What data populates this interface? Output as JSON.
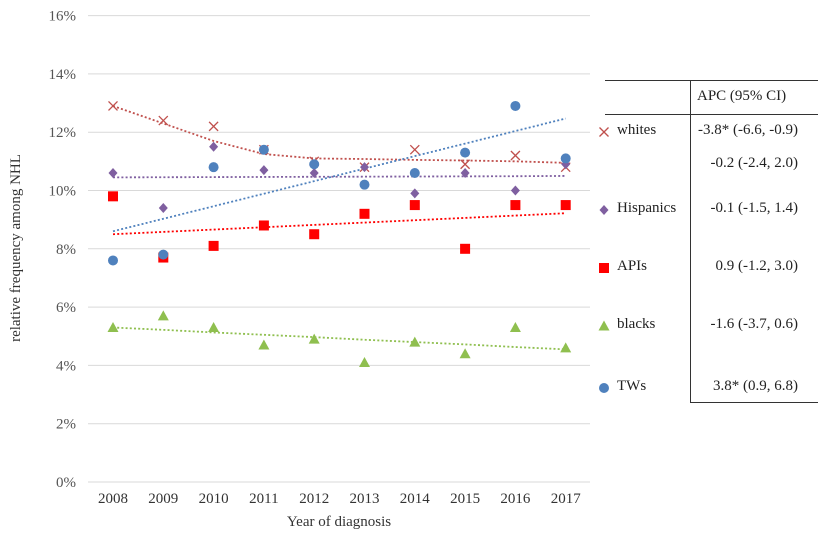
{
  "chart_data": {
    "type": "scatter",
    "title": "",
    "xlabel": "Year of diagnosis",
    "ylabel": "relative frequency among NHL",
    "categories": [
      "2008",
      "2009",
      "2010",
      "2011",
      "2012",
      "2013",
      "2014",
      "2015",
      "2016",
      "2017"
    ],
    "y_ticks": [
      "0%",
      "2%",
      "4%",
      "6%",
      "8%",
      "10%",
      "12%",
      "14%",
      "16%"
    ],
    "ylim": [
      0,
      16
    ],
    "grid": "horizontal",
    "series": [
      {
        "name": "whites",
        "marker": "x",
        "color": "#c0504d",
        "values": [
          12.9,
          12.4,
          12.2,
          11.4,
          11.0,
          10.8,
          11.4,
          10.9,
          11.2,
          10.8
        ],
        "trend": [
          12.9,
          12.3,
          11.7,
          11.25,
          11.1,
          11.08,
          11.05,
          11.03,
          11.0,
          10.95
        ],
        "apc": "-3.8* (-6.6, -0.9)"
      },
      {
        "name": "",
        "marker": "",
        "color": "",
        "values": [],
        "trend": [],
        "apc": "-0.2 (-2.4, 2.0)"
      },
      {
        "name": "Hispanics",
        "marker": "diamond",
        "color": "#7f5fa0",
        "values": [
          10.6,
          9.4,
          11.5,
          10.7,
          10.6,
          10.8,
          9.9,
          10.6,
          10.0,
          10.9
        ],
        "trend": [
          10.45,
          10.455,
          10.46,
          10.465,
          10.47,
          10.475,
          10.48,
          10.485,
          10.49,
          10.5
        ],
        "apc": "-0.1 (-1.5, 1.4)"
      },
      {
        "name": "APIs",
        "marker": "square",
        "color": "#ff0000",
        "values": [
          9.8,
          7.7,
          8.1,
          8.8,
          8.5,
          9.2,
          9.5,
          8.0,
          9.5,
          9.5
        ],
        "trend": [
          8.5,
          8.58,
          8.66,
          8.74,
          8.82,
          8.9,
          8.98,
          9.06,
          9.14,
          9.22
        ],
        "apc": "0.9 (-1.2, 3.0)"
      },
      {
        "name": "blacks",
        "marker": "triangle",
        "color": "#8fbf4f",
        "values": [
          5.3,
          5.7,
          5.3,
          4.7,
          4.9,
          4.1,
          4.8,
          4.4,
          5.3,
          4.6
        ],
        "trend": [
          5.3,
          5.22,
          5.13,
          5.05,
          4.97,
          4.88,
          4.8,
          4.72,
          4.63,
          4.55
        ],
        "apc": "-1.6 (-3.7, 0.6)"
      },
      {
        "name": "TWs",
        "marker": "circle",
        "color": "#4f81bd",
        "values": [
          7.6,
          7.8,
          10.8,
          11.4,
          10.9,
          10.2,
          10.6,
          11.3,
          12.9,
          11.1
        ],
        "trend": [
          8.6,
          9.03,
          9.46,
          9.89,
          10.32,
          10.75,
          11.18,
          11.61,
          12.04,
          12.47
        ],
        "apc": "3.8* (0.9, 6.8)"
      }
    ]
  },
  "table": {
    "header": "APC  (95% CI)"
  }
}
